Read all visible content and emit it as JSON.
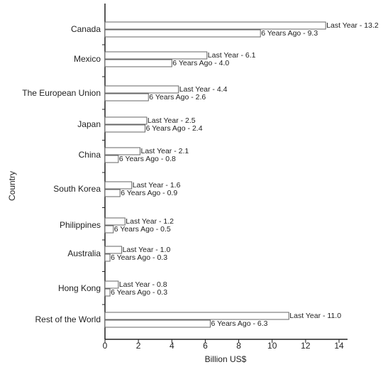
{
  "chart_data": {
    "type": "hbar",
    "x_label": "Billion US$",
    "y_label": "Country",
    "categories": [
      "Canada",
      "Mexico",
      "The European Union",
      "Japan",
      "China",
      "South Korea",
      "Philippines",
      "Australia",
      "Hong Kong",
      "Rest of the World"
    ],
    "series": [
      {
        "color": "#ffffff",
        "values": [
          13.2,
          6.1,
          4.4,
          2.5,
          2.1,
          1.6,
          1.2,
          1.0,
          0.8,
          11.0
        ],
        "value_labels": [
          "Last Year - 13.2",
          "Last Year - 6.1",
          "Last Year - 4.4",
          "Last Year - 2.5",
          "Last Year - 2.1",
          "Last Year - 1.6",
          "Last Year - 1.2",
          "Last Year - 1.0",
          "Last Year - 0.8",
          "Last Year - 11.0"
        ]
      },
      {
        "color": "#ffffff",
        "values": [
          9.3,
          4.0,
          2.6,
          2.4,
          0.8,
          0.9,
          0.5,
          0.3,
          0.3,
          6.3
        ],
        "value_labels": [
          "6 Years Ago - 9.3",
          "6 Years Ago - 4.0",
          "6 Years Ago - 2.6",
          "6 Years Ago - 2.4",
          "6 Years Ago - 0.8",
          "6 Years Ago - 0.9",
          "6 Years Ago - 0.5",
          "6 Years Ago - 0.3",
          "6 Years Ago - 0.3",
          "6 Years Ago - 6.3"
        ]
      }
    ],
    "xlim": [
      0,
      14
    ],
    "xticks": [
      0,
      2,
      4,
      6,
      8,
      10,
      12,
      14
    ]
  }
}
